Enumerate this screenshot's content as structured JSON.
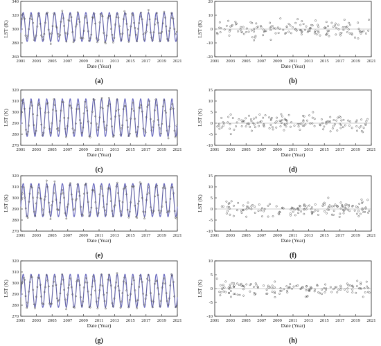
{
  "colors": {
    "fit_curve": "#6b6bbf",
    "observed": "#555555",
    "residual": "#555555",
    "zero_line": "#999999",
    "frame": "#222222"
  },
  "panels": [
    {
      "id": "a",
      "caption": "(a)",
      "kind": "timeseries",
      "xlabel": "Date (Year)",
      "ylabel": "LST (K)",
      "ylim": [
        260,
        340
      ],
      "yticks": [
        260,
        280,
        300,
        320,
        340
      ],
      "xticks": [
        2001,
        2003,
        2005,
        2007,
        2009,
        2011,
        2013,
        2015,
        2017,
        2019,
        2021
      ],
      "mean": 303,
      "amplitude": 21,
      "noise": 7
    },
    {
      "id": "b",
      "caption": "(b)",
      "kind": "residual",
      "xlabel": "Date (Year)",
      "ylabel": "LST (K)",
      "ylim": [
        -20,
        20
      ],
      "yticks": [
        -20,
        -10,
        0,
        10,
        20
      ],
      "xticks": [
        2001,
        2003,
        2005,
        2007,
        2009,
        2011,
        2013,
        2015,
        2017,
        2019,
        2021
      ],
      "spread": 6
    },
    {
      "id": "c",
      "caption": "(c)",
      "kind": "timeseries",
      "xlabel": "Date (Year)",
      "ylabel": "LST (K)",
      "ylim": [
        270,
        320
      ],
      "yticks": [
        270,
        280,
        290,
        300,
        310,
        320
      ],
      "xticks": [
        2001,
        2003,
        2005,
        2007,
        2009,
        2011,
        2013,
        2015,
        2017,
        2019,
        2021
      ],
      "mean": 295,
      "amplitude": 17,
      "noise": 5
    },
    {
      "id": "d",
      "caption": "(d)",
      "kind": "residual",
      "xlabel": "Date (Year)",
      "ylabel": "LST (K)",
      "ylim": [
        -10,
        15
      ],
      "yticks": [
        -10,
        -5,
        0,
        5,
        10,
        15
      ],
      "xticks": [
        2001,
        2003,
        2005,
        2007,
        2009,
        2011,
        2013,
        2015,
        2017,
        2019,
        2021
      ],
      "spread": 4
    },
    {
      "id": "e",
      "caption": "(e)",
      "kind": "timeseries",
      "xlabel": "Date (Year)",
      "ylabel": "LST (K)",
      "ylim": [
        270,
        320
      ],
      "yticks": [
        270,
        280,
        290,
        300,
        310,
        320
      ],
      "xticks": [
        2001,
        2003,
        2005,
        2007,
        2009,
        2011,
        2013,
        2015,
        2017,
        2019,
        2021
      ],
      "mean": 298,
      "amplitude": 15,
      "noise": 5
    },
    {
      "id": "f",
      "caption": "(f)",
      "kind": "residual",
      "xlabel": "Date (Year)",
      "ylabel": "LST (K)",
      "ylim": [
        -10,
        15
      ],
      "yticks": [
        -10,
        -5,
        0,
        5,
        10,
        15
      ],
      "xticks": [
        2001,
        2003,
        2005,
        2007,
        2009,
        2011,
        2013,
        2015,
        2017,
        2019,
        2021
      ],
      "spread": 4
    },
    {
      "id": "g",
      "caption": "(g)",
      "kind": "timeseries",
      "xlabel": "Date (Year)",
      "ylabel": "LST (K)",
      "ylim": [
        270,
        320
      ],
      "yticks": [
        270,
        280,
        290,
        300,
        310,
        320
      ],
      "xticks": [
        2001,
        2003,
        2005,
        2007,
        2009,
        2011,
        2013,
        2015,
        2017,
        2019,
        2021
      ],
      "mean": 293,
      "amplitude": 15,
      "noise": 4
    },
    {
      "id": "h",
      "caption": "(h)",
      "kind": "residual",
      "xlabel": "Date (Year)",
      "ylabel": "LST (K)",
      "ylim": [
        -10,
        10
      ],
      "yticks": [
        -10,
        -5,
        0,
        5,
        10
      ],
      "xticks": [
        2001,
        2003,
        2005,
        2007,
        2009,
        2011,
        2013,
        2015,
        2017,
        2019,
        2021
      ],
      "spread": 3
    }
  ],
  "chart_data": [
    {
      "type": "line",
      "title": "",
      "xlabel": "Date (Year)",
      "ylabel": "LST (K)",
      "xlim": [
        2001,
        2021
      ],
      "ylim": [
        260,
        340
      ],
      "caption": "(a)"
    },
    {
      "type": "scatter",
      "title": "",
      "xlabel": "Date (Year)",
      "ylabel": "LST (K)",
      "xlim": [
        2001,
        2021
      ],
      "ylim": [
        -20,
        20
      ],
      "caption": "(b)"
    },
    {
      "type": "line",
      "title": "",
      "xlabel": "Date (Year)",
      "ylabel": "LST (K)",
      "xlim": [
        2001,
        2021
      ],
      "ylim": [
        270,
        320
      ],
      "caption": "(c)"
    },
    {
      "type": "scatter",
      "title": "",
      "xlabel": "Date (Year)",
      "ylabel": "LST (K)",
      "xlim": [
        2001,
        2021
      ],
      "ylim": [
        -10,
        15
      ],
      "caption": "(d)"
    },
    {
      "type": "line",
      "title": "",
      "xlabel": "Date (Year)",
      "ylabel": "LST (K)",
      "xlim": [
        2001,
        2021
      ],
      "ylim": [
        270,
        320
      ],
      "caption": "(e)"
    },
    {
      "type": "scatter",
      "title": "",
      "xlabel": "Date (Year)",
      "ylabel": "LST (K)",
      "xlim": [
        2001,
        2021
      ],
      "ylim": [
        -10,
        15
      ],
      "caption": "(f)"
    },
    {
      "type": "line",
      "title": "",
      "xlabel": "Date (Year)",
      "ylabel": "LST (K)",
      "xlim": [
        2001,
        2021
      ],
      "ylim": [
        270,
        320
      ],
      "caption": "(g)"
    },
    {
      "type": "scatter",
      "title": "",
      "xlabel": "Date (Year)",
      "ylabel": "LST (K)",
      "xlim": [
        2001,
        2021
      ],
      "ylim": [
        -10,
        10
      ],
      "caption": "(h)"
    }
  ]
}
